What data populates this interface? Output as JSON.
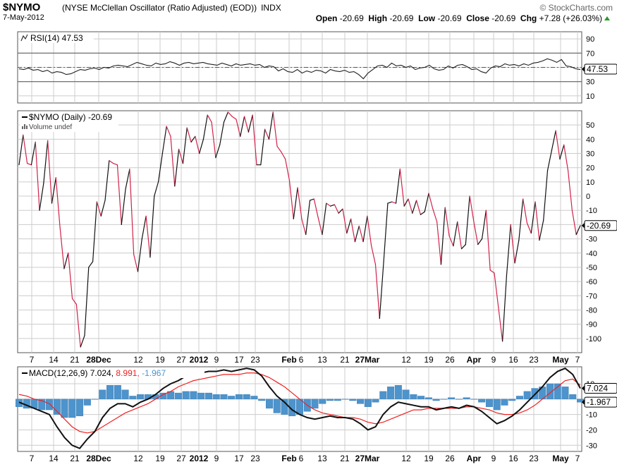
{
  "header": {
    "symbol": "$NYMO",
    "full_name": "(NYSE McClellan Oscillator (Ratio Adjusted) (EOD))",
    "exchange": "INDX",
    "date": "7-May-2012",
    "brand": "© StockCharts.com",
    "open_label": "Open",
    "open": "-20.69",
    "high_label": "High",
    "high": "-20.69",
    "low_label": "Low",
    "low": "-20.69",
    "close_label": "Close",
    "close": "-20.69",
    "chg_label": "Chg",
    "chg": "+7.28 (+26.03%)"
  },
  "colors": {
    "up": "#111111",
    "down": "#d2224a",
    "macd_hist": "#4d93cc",
    "signal": "#ee2222",
    "grid": "#cccccc"
  },
  "chart_data": [
    {
      "type": "line",
      "name": "rsi",
      "label": "RSI(14) 47.53",
      "ylim": [
        0,
        100
      ],
      "yticks": [
        10,
        30,
        50,
        70,
        90
      ],
      "reference_lines": [
        30,
        50,
        70
      ],
      "last_value_label": "47.53",
      "values": [
        48,
        47,
        49,
        46,
        47,
        44,
        46,
        42,
        44,
        43,
        40,
        41,
        44,
        47,
        46,
        48,
        49,
        47,
        50,
        49,
        52,
        53,
        52,
        51,
        54,
        57,
        55,
        53,
        52,
        56,
        54,
        55,
        58,
        56,
        53,
        56,
        57,
        55,
        56,
        57,
        55,
        54,
        53,
        56,
        54,
        52,
        55,
        53,
        54,
        55,
        53,
        54,
        50,
        52,
        51,
        45,
        48,
        44,
        43,
        47,
        42,
        45,
        43,
        46,
        45,
        42,
        47,
        45,
        44,
        46,
        43,
        44,
        40,
        34,
        42,
        47,
        52,
        53,
        50,
        56,
        52,
        53,
        50,
        52,
        47,
        49,
        50,
        53,
        48,
        46,
        47,
        52,
        49,
        53,
        54,
        51,
        47,
        48,
        44,
        42,
        49,
        52,
        51,
        55,
        53,
        54,
        52,
        55,
        53,
        56,
        57,
        59,
        62,
        60,
        57,
        61,
        52,
        51,
        48,
        47
      ]
    },
    {
      "type": "line",
      "name": "nymo",
      "label": "$NYMO (Daily) -20.69",
      "sublabel": "Volume undef",
      "ylim": [
        -110,
        60
      ],
      "yticks": [
        50,
        40,
        30,
        20,
        10,
        0,
        -10,
        -20,
        -30,
        -40,
        -50,
        -60,
        -70,
        -80,
        -90,
        -100
      ],
      "last_value_label": "-20.69",
      "x_labels": [
        "7",
        "14",
        "21",
        "28Dec",
        "12",
        "19",
        "27",
        "2012",
        "9",
        "17",
        "23",
        "Feb",
        "6",
        "13",
        "21",
        "27Mar",
        "12",
        "19",
        "26",
        "Apr",
        "9",
        "16",
        "23",
        "May",
        "7"
      ],
      "values": [
        22,
        43,
        23,
        22,
        38,
        -10,
        9,
        39,
        -5,
        13,
        -22,
        -51,
        -40,
        -72,
        -76,
        -106,
        -98,
        -50,
        -46,
        -4,
        -14,
        -3,
        25,
        23,
        22,
        -20,
        5,
        19,
        -41,
        -53,
        -30,
        -14,
        -43,
        0,
        10,
        30,
        49,
        42,
        7,
        33,
        23,
        48,
        38,
        42,
        30,
        40,
        57,
        52,
        27,
        36,
        52,
        59,
        56,
        54,
        42,
        56,
        45,
        57,
        22,
        22,
        47,
        40,
        59,
        35,
        31,
        26,
        11,
        -16,
        6,
        -16,
        -27,
        -3,
        -2,
        -15,
        -27,
        -5,
        -7,
        -6,
        -12,
        -9,
        -26,
        -16,
        -32,
        -21,
        -32,
        -14,
        -35,
        -48,
        -86,
        -46,
        -5,
        -4,
        -5,
        19,
        -7,
        -2,
        -12,
        -3,
        -13,
        -11,
        2,
        -9,
        -18,
        -48,
        -8,
        -28,
        -35,
        -18,
        -37,
        -34,
        0,
        -18,
        -34,
        -30,
        -10,
        -52,
        -54,
        -78,
        -102,
        -56,
        -20,
        -47,
        -31,
        -2,
        -19,
        -26,
        -4,
        -31,
        -17,
        18,
        32,
        46,
        26,
        36,
        18,
        -10,
        -27,
        -20.69
      ]
    },
    {
      "type": "line",
      "name": "macd",
      "label_prefix": "MACD(12,26,9) ",
      "macd_label": "7.024",
      "signal_label": "8.991",
      "hist_label": "-1.967",
      "ylim": [
        -34,
        21
      ],
      "yticks": [
        10,
        0,
        -10,
        -20,
        -30
      ],
      "x_labels": [
        "7",
        "14",
        "21",
        "28Dec",
        "12",
        "19",
        "27",
        "2012",
        "9",
        "17",
        "23",
        "Feb",
        "6",
        "13",
        "21",
        "27Mar",
        "12",
        "19",
        "26",
        "Apr",
        "9",
        "16",
        "23",
        "May",
        "7"
      ],
      "series": [
        {
          "name": "MACD",
          "values": [
            -2,
            -4,
            -6,
            -8,
            -10,
            -18,
            -25,
            -30,
            -32,
            -26,
            -21,
            -12,
            -6,
            -3,
            -3,
            -5,
            -2,
            0,
            3,
            7,
            10,
            12,
            15,
            17,
            17,
            18,
            18,
            19,
            18,
            19,
            20,
            19,
            15,
            8,
            2,
            -2,
            -7,
            -10,
            -12,
            -13,
            -12,
            -11,
            -12,
            -12,
            -13,
            -16,
            -20,
            -18,
            -10,
            -5,
            -2,
            -3,
            -4,
            -5,
            -5,
            -7,
            -6,
            -5,
            -6,
            -4,
            -5,
            -8,
            -12,
            -16,
            -14,
            -11,
            -7,
            -2,
            3,
            8,
            14,
            18,
            20,
            16,
            7
          ]
        },
        {
          "name": "Signal",
          "values": [
            3,
            2,
            0,
            -1,
            -3,
            -8,
            -13,
            -18,
            -21,
            -22,
            -21,
            -18,
            -15,
            -12,
            -9,
            -7,
            -5,
            -3,
            0,
            3,
            5,
            8,
            10,
            12,
            13,
            14,
            15,
            16,
            16,
            16,
            17,
            17,
            16,
            14,
            11,
            8,
            4,
            0,
            -4,
            -7,
            -9,
            -10,
            -11,
            -12,
            -12,
            -13,
            -15,
            -16,
            -15,
            -13,
            -11,
            -9,
            -7,
            -7,
            -6,
            -6,
            -6,
            -6,
            -6,
            -5,
            -5,
            -6,
            -7,
            -9,
            -10,
            -10,
            -9,
            -7,
            -4,
            0,
            4,
            8,
            12,
            13,
            9
          ]
        },
        {
          "name": "Histogram",
          "values": [
            -5,
            -6,
            -6,
            -7,
            -7,
            -10,
            -12,
            -12,
            -11,
            -4,
            0,
            6,
            9,
            9,
            6,
            2,
            3,
            3,
            3,
            4,
            5,
            4,
            5,
            5,
            4,
            4,
            3,
            3,
            2,
            3,
            3,
            2,
            -1,
            -6,
            -9,
            -10,
            -11,
            -10,
            -8,
            -6,
            -3,
            -1,
            -1,
            0,
            -1,
            -3,
            -5,
            -2,
            5,
            8,
            9,
            6,
            3,
            2,
            1,
            -1,
            0,
            1,
            0,
            1,
            0,
            -2,
            -5,
            -7,
            -4,
            -1,
            2,
            5,
            7,
            8,
            10,
            10,
            8,
            3,
            -2
          ]
        }
      ]
    }
  ]
}
